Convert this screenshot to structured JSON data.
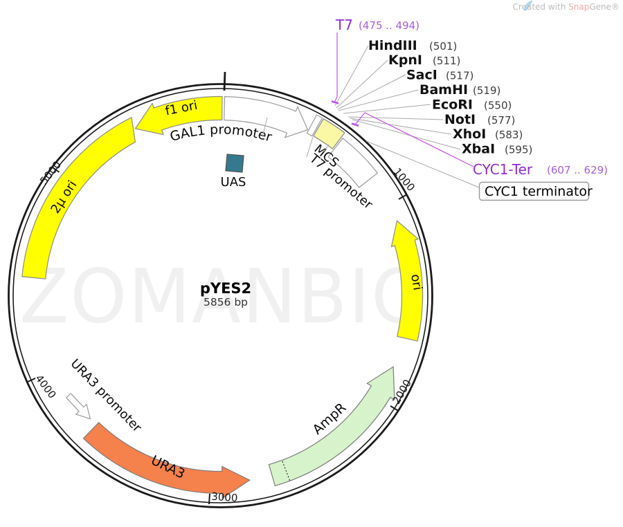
{
  "credit": {
    "prefix": "Created with ",
    "brand_snap": "Snap",
    "brand_gene": "Gene®"
  },
  "watermark": "ZOMANBIO",
  "plasmid": {
    "name": "pYES2",
    "size_label": "5856 bp"
  },
  "tick_labels": [
    "1000",
    "2000",
    "3000",
    "4000",
    "5000"
  ],
  "features": [
    {
      "id": "f1-ori",
      "label": "f1 ori",
      "color": "#ffff00",
      "stroke": "#8c8c8c"
    },
    {
      "id": "gal1-promoter",
      "label": "GAL1 promoter",
      "color": "#ffffff",
      "stroke": "#9a9a9a"
    },
    {
      "id": "uas",
      "label": "UAS",
      "color": "#36798f",
      "stroke": "#4f4f4f"
    },
    {
      "id": "t7-promoter",
      "label": "T7 promoter",
      "color": "#ffffff",
      "stroke": "#9a9a9a"
    },
    {
      "id": "mcs",
      "label": "MCS",
      "color": "#faf8a4",
      "stroke": "#8a8a8a"
    },
    {
      "id": "cyc1-terminator",
      "label": "CYC1 terminator",
      "color": "#ffffff",
      "stroke": "#9a9a9a"
    },
    {
      "id": "ori",
      "label": "ori",
      "color": "#ffff00",
      "stroke": "#8c8c8c"
    },
    {
      "id": "ampr",
      "label": "AmpR",
      "color": "#d6f3cb",
      "stroke": "#7c7c7c"
    },
    {
      "id": "ura3",
      "label": "URA3",
      "color": "#f5814d",
      "stroke": "#7c7c7c"
    },
    {
      "id": "ura3-promoter",
      "label": "URA3 promoter",
      "color": "#ffffff",
      "stroke": "#9a9a9a"
    },
    {
      "id": "two-micron-ori",
      "label": "2µ ori",
      "color": "#ffff00",
      "stroke": "#8c8c8c"
    }
  ],
  "sites": [
    {
      "name": "T7",
      "pos": "(475 .. 494)"
    },
    {
      "name": "HindIII",
      "pos": "(501)"
    },
    {
      "name": "KpnI",
      "pos": "(511)"
    },
    {
      "name": "SacI",
      "pos": "(517)"
    },
    {
      "name": "BamHI",
      "pos": "(519)"
    },
    {
      "name": "EcoRI",
      "pos": "(550)"
    },
    {
      "name": "NotI",
      "pos": "(577)"
    },
    {
      "name": "XhoI",
      "pos": "(583)"
    },
    {
      "name": "XbaI",
      "pos": "(595)"
    },
    {
      "name": "CYC1-Ter",
      "pos": "(607 .. 629)"
    }
  ],
  "colors": {
    "primer_name": "#8e2bd4",
    "primer_pos": "#a55fe0",
    "leader_purple": "#c050ec",
    "snap_accent": "#f0a8a8",
    "credit_gray": "#bcbcbc"
  }
}
